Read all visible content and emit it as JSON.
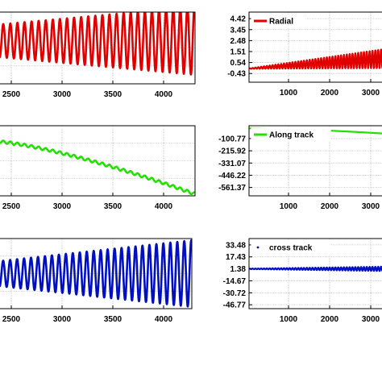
{
  "chart_data": [
    {
      "type": "line",
      "panel": "left-top",
      "xticks": [
        "2500",
        "3000",
        "3500",
        "4000"
      ],
      "xlim": [
        2200,
        4300
      ],
      "ylim": [
        -1,
        1
      ],
      "color": "#e00000",
      "grid": true,
      "series": [
        {
          "x_range": [
            2200,
            4300
          ],
          "shape": "oscillation",
          "period": 75,
          "amp_start": 0.45,
          "amp_end": 0.95,
          "offset": 0.2
        }
      ]
    },
    {
      "type": "line",
      "panel": "left-middle",
      "xticks": [
        "2500",
        "3000",
        "3500",
        "4000"
      ],
      "xlim": [
        2200,
        4300
      ],
      "ylim": [
        -1,
        1
      ],
      "color": "#22e000",
      "grid": true,
      "series": [
        {
          "x_range": [
            2200,
            4300
          ],
          "shape": "decline-with-ripple",
          "start": 0.55,
          "end": -0.95,
          "ripple": 0.04,
          "period": 75
        }
      ]
    },
    {
      "type": "line",
      "panel": "left-bottom",
      "xticks": [
        "2500",
        "3000",
        "3500",
        "4000"
      ],
      "xlim": [
        2200,
        4300
      ],
      "ylim": [
        -1,
        1
      ],
      "color": "#0010c0",
      "grid": true,
      "series": [
        {
          "x_range": [
            2200,
            4300
          ],
          "shape": "oscillation",
          "period": 75,
          "amp_start": 0.35,
          "amp_end": 0.95,
          "offset": 0.0
        }
      ]
    },
    {
      "type": "line",
      "panel": "right-top",
      "legend": "Radial",
      "legend_placement": "top-left",
      "yticks": [
        "4.42",
        "3.45",
        "2.48",
        "1.51",
        "0.54",
        "-0.43"
      ],
      "ytick_values": [
        4.42,
        3.45,
        2.48,
        1.51,
        0.54,
        -0.43
      ],
      "xticks": [
        "1000",
        "2000",
        "3000"
      ],
      "xlim": [
        0,
        3600
      ],
      "ylim": [
        -1.2,
        5.0
      ],
      "color": "#e00000",
      "grid": true,
      "series": [
        {
          "name": "Radial",
          "x_range": [
            0,
            3600
          ],
          "shape": "oscillation",
          "period": 75,
          "amp_start": 0.02,
          "amp_end": 0.85,
          "offset_start": 0.0,
          "offset_end": 0.9
        }
      ]
    },
    {
      "type": "line",
      "panel": "right-middle",
      "legend": "Along track",
      "legend_placement": "top-left",
      "yticks": [
        "-100.77",
        "-215.92",
        "-331.07",
        "-446.22",
        "-561.37"
      ],
      "ytick_values": [
        -100.77,
        -215.92,
        -331.07,
        -446.22,
        -561.37
      ],
      "xticks": [
        "1000",
        "2000",
        "3000"
      ],
      "xlim": [
        0,
        3600
      ],
      "ylim": [
        -640,
        20
      ],
      "color": "#22e000",
      "grid": true,
      "series": [
        {
          "name": "Along track",
          "x_range": [
            0,
            3600
          ],
          "shape": "decline",
          "start": -5,
          "end": -55
        }
      ]
    },
    {
      "type": "line",
      "panel": "right-bottom",
      "legend": "cross track",
      "legend_placement": "top-left",
      "yticks": [
        "33.48",
        "17.43",
        "1.38",
        "-14.67",
        "-30.72",
        "-46.77"
      ],
      "ytick_values": [
        33.48,
        17.43,
        1.38,
        -14.67,
        -30.72,
        -46.77
      ],
      "xticks": [
        "1000",
        "2000",
        "3000"
      ],
      "xlim": [
        0,
        3600
      ],
      "ylim": [
        -52,
        42
      ],
      "color": "#0010c0",
      "grid": true,
      "series": [
        {
          "name": "cross track",
          "x_range": [
            0,
            3600
          ],
          "shape": "oscillation",
          "period": 75,
          "amp_start": 0.3,
          "amp_end": 3.0,
          "offset": 1.38
        }
      ]
    }
  ]
}
